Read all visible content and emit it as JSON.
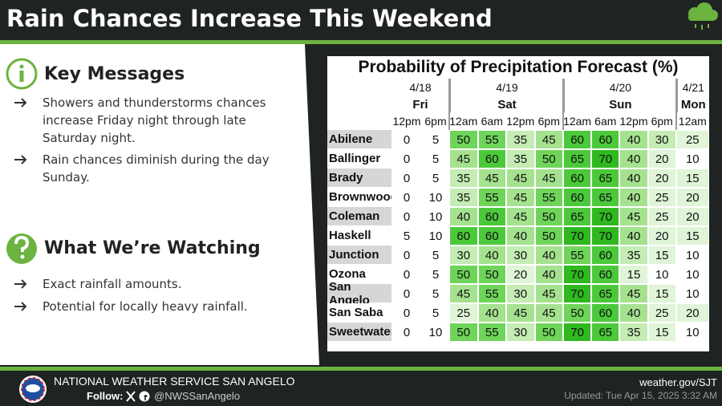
{
  "header": {
    "title": "Rain Chances Increase This Weekend"
  },
  "key_messages": {
    "heading": "Key Messages",
    "bullets": [
      "Showers and thunderstorms chances increase Friday night through late Saturday night.",
      "Rain chances diminish during the day Sunday."
    ]
  },
  "watching": {
    "heading": "What We’re Watching",
    "bullets": [
      "Exact rainfall amounts.",
      "Potential for locally heavy rainfall."
    ]
  },
  "table": {
    "title": "Probability of Precipitation Forecast (%)",
    "days": [
      {
        "date": "4/18",
        "day": "Fri",
        "times": [
          "12pm",
          "6pm"
        ]
      },
      {
        "date": "4/19",
        "day": "Sat",
        "times": [
          "12am",
          "6am",
          "12pm",
          "6pm"
        ]
      },
      {
        "date": "4/20",
        "day": "Sun",
        "times": [
          "12am",
          "6am",
          "12pm",
          "6pm"
        ]
      },
      {
        "date": "4/21",
        "day": "Mon",
        "times": [
          "12am"
        ]
      }
    ],
    "rows": [
      {
        "location": "Abilene",
        "values": [
          0,
          5,
          50,
          55,
          35,
          45,
          60,
          60,
          40,
          30,
          25
        ]
      },
      {
        "location": "Ballinger",
        "values": [
          0,
          5,
          45,
          60,
          35,
          50,
          65,
          70,
          40,
          20,
          10
        ]
      },
      {
        "location": "Brady",
        "values": [
          0,
          5,
          35,
          45,
          45,
          45,
          60,
          65,
          40,
          20,
          15
        ]
      },
      {
        "location": "Brownwood",
        "values": [
          0,
          10,
          35,
          55,
          45,
          55,
          60,
          65,
          40,
          25,
          20
        ]
      },
      {
        "location": "Coleman",
        "values": [
          0,
          10,
          40,
          60,
          45,
          50,
          65,
          70,
          45,
          25,
          20
        ]
      },
      {
        "location": "Haskell",
        "values": [
          5,
          10,
          60,
          60,
          40,
          50,
          70,
          70,
          40,
          20,
          15
        ]
      },
      {
        "location": "Junction",
        "values": [
          0,
          5,
          30,
          40,
          30,
          40,
          55,
          60,
          35,
          15,
          10
        ]
      },
      {
        "location": "Ozona",
        "values": [
          0,
          5,
          50,
          50,
          20,
          40,
          70,
          60,
          15,
          10,
          10
        ]
      },
      {
        "location": "San Angelo",
        "values": [
          0,
          5,
          45,
          55,
          30,
          45,
          70,
          65,
          45,
          15,
          10
        ]
      },
      {
        "location": "San Saba",
        "values": [
          0,
          5,
          25,
          40,
          45,
          45,
          50,
          60,
          40,
          25,
          20
        ]
      },
      {
        "location": "Sweetwater",
        "values": [
          0,
          10,
          50,
          55,
          30,
          50,
          70,
          65,
          35,
          15,
          10
        ]
      }
    ]
  },
  "footer": {
    "office": "NATIONAL WEATHER SERVICE SAN ANGELO",
    "follow": "Follow:",
    "handle": "@NWSSanAngelo",
    "website": "weather.gov/SJT",
    "updated": "Updated: Tue Apr 15, 2025 3:32 AM"
  }
}
